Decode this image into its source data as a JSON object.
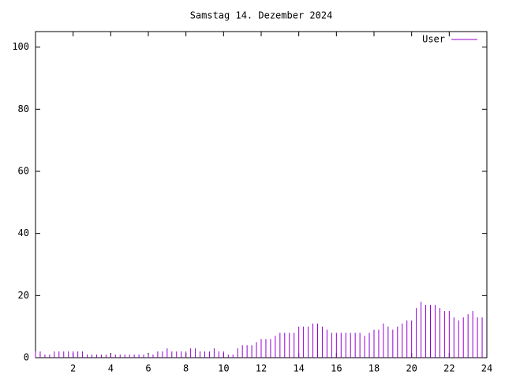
{
  "chart_data": {
    "type": "impulse",
    "title": "Samstag 14. Dezember 2024",
    "xlim": [
      0,
      24
    ],
    "xticks": [
      2,
      4,
      6,
      8,
      10,
      12,
      14,
      16,
      18,
      20,
      22,
      24
    ],
    "ylim": [
      0,
      105
    ],
    "yticks": [
      0,
      20,
      40,
      60,
      80,
      100
    ],
    "x": [
      0,
      0.25,
      0.5,
      0.75,
      1,
      1.25,
      1.5,
      1.75,
      2,
      2.25,
      2.5,
      2.75,
      3,
      3.25,
      3.5,
      3.75,
      4,
      4.25,
      4.5,
      4.75,
      5,
      5.25,
      5.5,
      5.75,
      6,
      6.25,
      6.5,
      6.75,
      7,
      7.25,
      7.5,
      7.75,
      8,
      8.25,
      8.5,
      8.75,
      9,
      9.25,
      9.5,
      9.75,
      10,
      10.25,
      10.5,
      10.75,
      11,
      11.25,
      11.5,
      11.75,
      12,
      12.25,
      12.5,
      12.75,
      13,
      13.25,
      13.5,
      13.75,
      14,
      14.25,
      14.5,
      14.75,
      15,
      15.25,
      15.5,
      15.75,
      16,
      16.25,
      16.5,
      16.75,
      17,
      17.25,
      17.5,
      17.75,
      18,
      18.25,
      18.5,
      18.75,
      19,
      19.25,
      19.5,
      19.75,
      20,
      20.25,
      20.5,
      20.75,
      21,
      21.25,
      21.5,
      21.75,
      22,
      22.25,
      22.5,
      22.75,
      23,
      23.25,
      23.5,
      23.75
    ],
    "series": [
      {
        "name": "User",
        "color": "#9400d3",
        "values": [
          2,
          2,
          1,
          1,
          2,
          2,
          2,
          2,
          2,
          2,
          2,
          1,
          1,
          1,
          1,
          1,
          1,
          1,
          1,
          1,
          1,
          1,
          1,
          1,
          1,
          1,
          2,
          2,
          3,
          2,
          2,
          2,
          2,
          3,
          3,
          2,
          2,
          2,
          3,
          2,
          2,
          1,
          1,
          3,
          4,
          4,
          4,
          5,
          6,
          6,
          6,
          7,
          8,
          8,
          8,
          8,
          10,
          10,
          10,
          11,
          11,
          10,
          9,
          8,
          8,
          8,
          8,
          8,
          8,
          8,
          7,
          8,
          9,
          9,
          11,
          10,
          9,
          10,
          11,
          12,
          12,
          16,
          18,
          17,
          17,
          17,
          16,
          15,
          15,
          13,
          12,
          13,
          14,
          15,
          13,
          13
        ]
      }
    ],
    "legend": "top-right"
  }
}
